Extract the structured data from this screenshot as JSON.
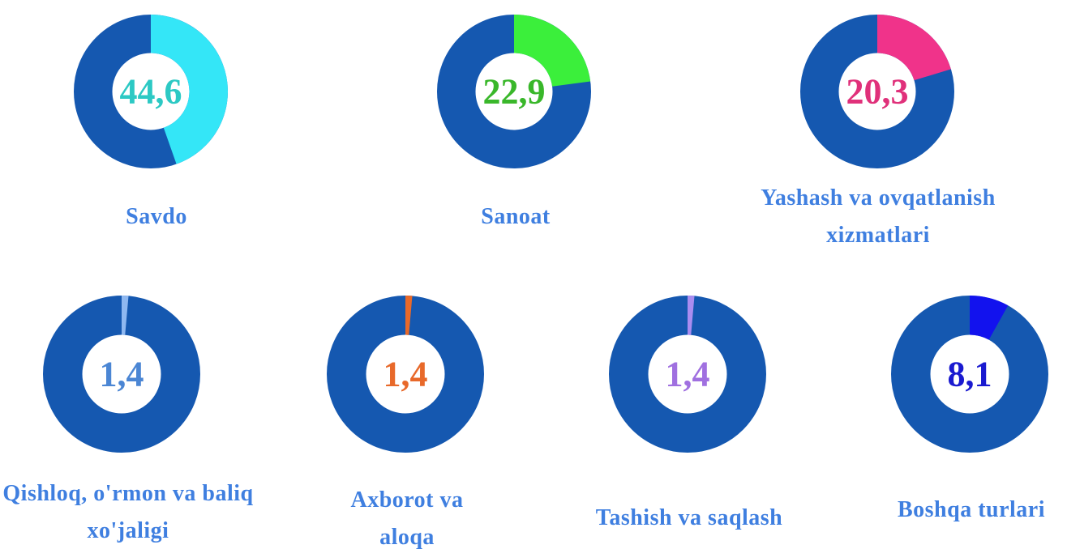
{
  "chart_data": [
    {
      "type": "donut",
      "title": "Savdo",
      "values": [
        44.6
      ],
      "value_labels": [
        "44,6"
      ],
      "color": "#34e6f7",
      "label_color": "#2cc9c4"
    },
    {
      "type": "donut",
      "title": "Sanoat",
      "values": [
        22.9
      ],
      "value_labels": [
        "22,9"
      ],
      "color": "#3bef3b",
      "label_color": "#39b72a"
    },
    {
      "type": "donut",
      "title": "Yashash va ovqatlanish xizmatlari",
      "values": [
        20.3
      ],
      "value_labels": [
        "20,3"
      ],
      "color": "#f0338a",
      "label_color": "#e0307a"
    },
    {
      "type": "donut",
      "title": "Qishloq, o'rmon va baliq xo'jaligi",
      "values": [
        1.4
      ],
      "value_labels": [
        "1,4"
      ],
      "color": "#8fb8f0",
      "label_color": "#4b86d4"
    },
    {
      "type": "donut",
      "title": "Axborot va aloqa",
      "values": [
        1.4
      ],
      "value_labels": [
        "1,4"
      ],
      "color": "#e8692a",
      "label_color": "#e8692a"
    },
    {
      "type": "donut",
      "title": "Tashish va saqlash",
      "values": [
        1.4
      ],
      "value_labels": [
        "1,4"
      ],
      "color": "#a98cf0",
      "label_color": "#a070e0"
    },
    {
      "type": "donut",
      "title": "Boshqa turlari",
      "values": [
        8.1
      ],
      "value_labels": [
        "8,1"
      ],
      "color": "#1212ee",
      "label_color": "#1a1ad0"
    }
  ]
}
